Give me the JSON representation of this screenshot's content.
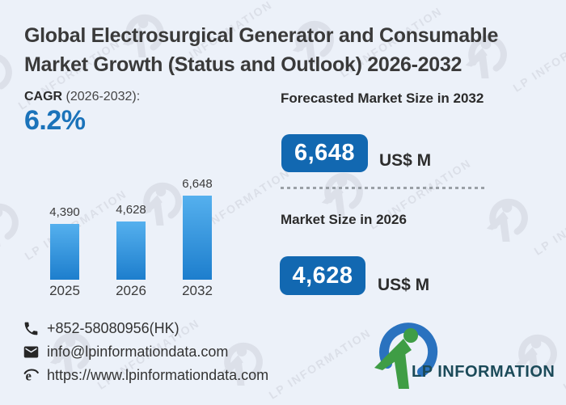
{
  "watermark": {
    "text": "LP INFORMATION"
  },
  "header": {
    "title_lines": [
      "Global Electrosurgical Generator and Consumable",
      "Market Growth (Status and Outlook) 2026-2032"
    ]
  },
  "cagr": {
    "label_bold": "CAGR",
    "label_rest": " (2026-2032):",
    "value": "6.2%"
  },
  "chart_data": {
    "type": "bar",
    "categories": [
      "2025",
      "2026",
      "2032"
    ],
    "values": [
      4390,
      4628,
      6648
    ],
    "value_labels": [
      "4,390",
      "4,628",
      "6,648"
    ],
    "unit": "US$ M",
    "title": "",
    "xlabel": "",
    "ylabel": "",
    "ylim": [
      0,
      6648
    ],
    "grid": false,
    "legend": false,
    "bar_color_top": "#55b0ee",
    "bar_color_bottom": "#1d7ecd"
  },
  "forecast_2032": {
    "heading": "Forecasted Market Size in 2032",
    "value": "6,648",
    "unit": "US$ M"
  },
  "market_2026": {
    "heading": "Market Size in 2026",
    "value": "4,628",
    "unit": "US$ M"
  },
  "contact": {
    "phone": "+852-58080956(HK)",
    "email": "info@lpinformationdata.com",
    "website": "https://www.lpinformationdata.com"
  },
  "logo": {
    "text": "LP INFORMATION"
  },
  "colors": {
    "background": "#ecf1f9",
    "accent_blue": "#1268b1",
    "cagr_blue": "#1b73ba",
    "title_text": "#3a3a3a",
    "logo_green": "#3f9d45",
    "logo_blue": "#2a72bf",
    "logo_text": "#1b4a59",
    "watermark": "#d9dde6"
  }
}
